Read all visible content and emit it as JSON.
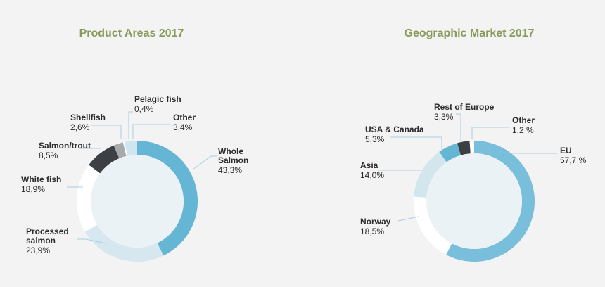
{
  "colors": {
    "title": "#8a9a5b",
    "background": "#f3f3f3",
    "inner_disc": "#eaf2f5"
  },
  "chart_data": [
    {
      "type": "pie",
      "title": "Product Areas 2017",
      "slices": [
        {
          "label": [
            "Whole",
            "Salmon"
          ],
          "value_label": "43,3%",
          "value": 43.3,
          "color": "#64b6d4"
        },
        {
          "label": [
            "Processed",
            "salmon"
          ],
          "value_label": "23,9%",
          "value": 23.9,
          "color": "#d6e7ef"
        },
        {
          "label": [
            "White fish"
          ],
          "value_label": "18,9%",
          "value": 18.9,
          "color": "#ffffff"
        },
        {
          "label": [
            "Salmon/trout"
          ],
          "value_label": "8,5%",
          "value": 8.5,
          "color": "#3c3f43"
        },
        {
          "label": [
            "Shellfish"
          ],
          "value_label": "2,6%",
          "value": 2.6,
          "color": "#a7a9ab"
        },
        {
          "label": [
            "Pelagic  fish"
          ],
          "value_label": "0,4%",
          "value": 0.4,
          "color": "#ffffff"
        },
        {
          "label": [
            "Other"
          ],
          "value_label": "3,4%",
          "value": 3.4,
          "color": "#cfe5ef"
        }
      ]
    },
    {
      "type": "pie",
      "title": "Geographic Market 2017",
      "slices": [
        {
          "label": [
            "EU"
          ],
          "value_label": "57,7 %",
          "value": 57.7,
          "color": "#79bedb"
        },
        {
          "label": [
            "Norway"
          ],
          "value_label": "18,5%",
          "value": 18.5,
          "color": "#ffffff"
        },
        {
          "label": [
            "Asia"
          ],
          "value_label": "14,0%",
          "value": 14.0,
          "color": "#d3e6ee"
        },
        {
          "label": [
            "USA & Canada"
          ],
          "value_label": "5,3%",
          "value": 5.3,
          "color": "#64b6d4"
        },
        {
          "label": [
            "Rest of Europe"
          ],
          "value_label": "3,3%",
          "value": 3.3,
          "color": "#3c3f43"
        },
        {
          "label": [
            "Other"
          ],
          "value_label": "1,2 %",
          "value": 1.2,
          "color": "#ffffff"
        }
      ]
    }
  ]
}
